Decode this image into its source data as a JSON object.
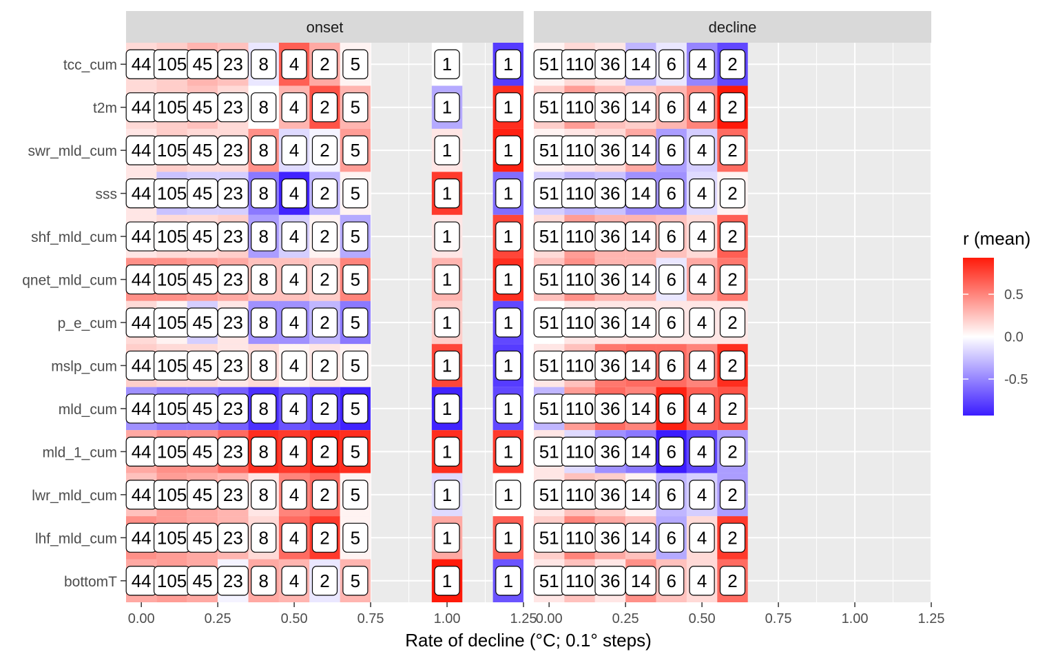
{
  "chart_data": {
    "type": "heatmap",
    "xlabel": "Rate of decline (°C; 0.1° steps)",
    "legend": {
      "title": "r (mean)",
      "ticks": [
        0.5,
        0.0,
        -0.5
      ],
      "tick_labels": [
        "0.5",
        "0.0",
        "-0.5"
      ],
      "range": [
        -0.93,
        0.93
      ],
      "colors": {
        "low": "#3b1cff",
        "mid": "#ffffff",
        "high": "#ff1a0a"
      },
      "placement": "right"
    },
    "x_ticks": [
      0.0,
      0.25,
      0.5,
      0.75,
      1.0,
      1.25
    ],
    "x_tick_labels": [
      "0.00",
      "0.25",
      "0.50",
      "0.75",
      "1.00",
      "1.25"
    ],
    "xlim": [
      -0.05,
      1.25
    ],
    "rows": [
      "tcc_cum",
      "t2m",
      "swr_mld_cum",
      "sss",
      "shf_mld_cum",
      "qnet_mld_cum",
      "p_e_cum",
      "mslp_cum",
      "mld_cum",
      "mld_1_cum",
      "lwr_mld_cum",
      "lhf_mld_cum",
      "bottomT"
    ],
    "panels": [
      {
        "title": "onset",
        "x": [
          0.0,
          0.1,
          0.2,
          0.3,
          0.4,
          0.5,
          0.6,
          0.7,
          1.0,
          1.2
        ],
        "counts": [
          "44",
          "105",
          "45",
          "23",
          "8",
          "4",
          "2",
          "5",
          "1",
          "1"
        ],
        "values": [
          [
            0.15,
            0.2,
            0.3,
            0.25,
            -0.1,
            0.65,
            0.35,
            0.05,
            0.0,
            -0.8
          ],
          [
            0.15,
            0.2,
            0.25,
            0.15,
            0.0,
            0.3,
            0.7,
            0.3,
            -0.35,
            0.85
          ],
          [
            0.1,
            0.2,
            0.15,
            0.15,
            0.45,
            -0.15,
            -0.05,
            0.4,
            0.1,
            0.9
          ],
          [
            0.1,
            -0.25,
            -0.2,
            -0.2,
            -0.55,
            -0.9,
            -0.3,
            0.05,
            0.8,
            -0.6
          ],
          [
            0.1,
            0.15,
            0.15,
            0.2,
            -0.4,
            -0.2,
            0.05,
            -0.35,
            0.1,
            0.75
          ],
          [
            0.45,
            0.45,
            0.4,
            0.35,
            0.25,
            0.25,
            0.2,
            0.5,
            0.3,
            0.85
          ],
          [
            0.15,
            0.05,
            -0.2,
            0.1,
            -0.45,
            -0.45,
            -0.3,
            -0.55,
            0.2,
            -0.75
          ],
          [
            0.2,
            0.15,
            0.15,
            0.1,
            0.15,
            0.05,
            0.1,
            0.05,
            0.75,
            -0.8
          ],
          [
            -0.45,
            -0.55,
            -0.55,
            -0.65,
            -0.85,
            -0.7,
            -0.8,
            -0.9,
            -0.9,
            -0.75
          ],
          [
            0.35,
            0.45,
            0.45,
            0.6,
            0.85,
            0.8,
            0.9,
            0.85,
            0.85,
            0.8
          ],
          [
            0.25,
            0.4,
            0.35,
            0.3,
            0.1,
            0.5,
            0.6,
            0.05,
            -0.15,
            0.0
          ],
          [
            0.45,
            0.4,
            0.35,
            0.3,
            0.15,
            0.6,
            0.8,
            0.05,
            0.35,
            0.65
          ],
          [
            0.35,
            0.4,
            0.35,
            -0.05,
            0.35,
            0.3,
            -0.1,
            0.3,
            0.95,
            -0.7
          ]
        ]
      },
      {
        "title": "decline",
        "x": [
          0.0,
          0.1,
          0.2,
          0.3,
          0.4,
          0.5,
          0.6
        ],
        "counts": [
          "51",
          "110",
          "36",
          "14",
          "6",
          "4",
          "2"
        ],
        "values": [
          [
            0.05,
            0.15,
            0.1,
            -0.3,
            -0.1,
            -0.5,
            -0.75
          ],
          [
            0.2,
            0.4,
            0.25,
            0.2,
            0.3,
            0.5,
            0.95
          ],
          [
            0.05,
            0.1,
            0.15,
            0.35,
            -0.4,
            -0.2,
            0.6
          ],
          [
            -0.2,
            -0.3,
            -0.25,
            -0.45,
            -0.45,
            -0.15,
            0.05
          ],
          [
            0.15,
            0.4,
            0.3,
            0.3,
            0.25,
            0.15,
            0.65
          ],
          [
            0.25,
            0.45,
            0.3,
            0.3,
            -0.1,
            0.35,
            0.55
          ],
          [
            0.0,
            0.1,
            0.1,
            0.1,
            0.1,
            0.1,
            0.1
          ],
          [
            0.1,
            0.25,
            0.55,
            0.6,
            0.6,
            0.5,
            0.85
          ],
          [
            -0.3,
            0.4,
            0.6,
            0.5,
            0.9,
            0.65,
            0.7
          ],
          [
            0.1,
            -0.15,
            -0.45,
            -0.55,
            -0.95,
            -0.75,
            -0.4
          ],
          [
            0.1,
            0.25,
            0.2,
            0.05,
            -0.3,
            -0.2,
            -0.4
          ],
          [
            0.2,
            0.5,
            0.35,
            0.25,
            -0.35,
            0.15,
            0.8
          ],
          [
            0.1,
            0.25,
            0.1,
            0.45,
            0.25,
            0.15,
            0.6
          ]
        ]
      }
    ]
  }
}
